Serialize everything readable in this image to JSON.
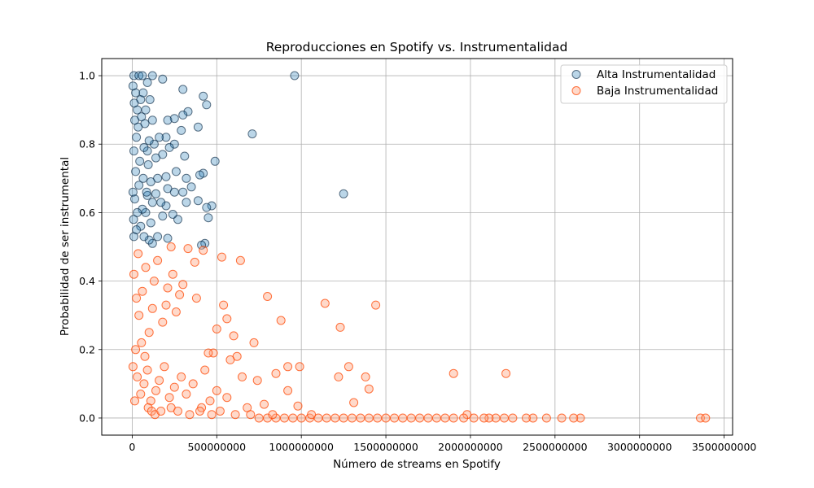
{
  "chart_data": {
    "type": "scatter",
    "title": "Reproducciones en Spotify vs. Instrumentalidad",
    "xlabel": "Número de streams en Spotify",
    "ylabel": "Probabilidad de ser instrumental",
    "xlim": [
      -180000000,
      3550000000
    ],
    "ylim": [
      -0.05,
      1.05
    ],
    "x_ticks": [
      0,
      500000000,
      1000000000,
      1500000000,
      2000000000,
      2500000000,
      3000000000,
      3500000000
    ],
    "x_tick_labels": [
      "0",
      "500000000",
      "1000000000",
      "1500000000",
      "2000000000",
      "2500000000",
      "3000000000",
      "3500000000"
    ],
    "y_ticks": [
      0.0,
      0.2,
      0.4,
      0.6,
      0.8,
      1.0
    ],
    "y_tick_labels": [
      "0.0",
      "0.2",
      "0.4",
      "0.6",
      "0.8",
      "1.0"
    ],
    "grid": true,
    "legend_position": "top-right",
    "series": [
      {
        "name": "Alta Instrumentalidad",
        "color": "#1f77b4",
        "edge_color": "#0b2a45",
        "alpha": 0.3,
        "points": [
          [
            960000000,
            1.0
          ],
          [
            300000000,
            0.96
          ],
          [
            120000000,
            1.0
          ],
          [
            180000000,
            0.99
          ],
          [
            10000000,
            1.0
          ],
          [
            40000000,
            1.0
          ],
          [
            60000000,
            1.0
          ],
          [
            90000000,
            0.98
          ],
          [
            420000000,
            0.94
          ],
          [
            440000000,
            0.915
          ],
          [
            330000000,
            0.895
          ],
          [
            300000000,
            0.885
          ],
          [
            250000000,
            0.875
          ],
          [
            210000000,
            0.87
          ],
          [
            390000000,
            0.85
          ],
          [
            710000000,
            0.83
          ],
          [
            290000000,
            0.84
          ],
          [
            200000000,
            0.82
          ],
          [
            160000000,
            0.82
          ],
          [
            130000000,
            0.8
          ],
          [
            250000000,
            0.8
          ],
          [
            220000000,
            0.79
          ],
          [
            100000000,
            0.81
          ],
          [
            490000000,
            0.75
          ],
          [
            310000000,
            0.765
          ],
          [
            180000000,
            0.77
          ],
          [
            140000000,
            0.76
          ],
          [
            90000000,
            0.78
          ],
          [
            70000000,
            0.79
          ],
          [
            420000000,
            0.715
          ],
          [
            400000000,
            0.71
          ],
          [
            320000000,
            0.7
          ],
          [
            260000000,
            0.72
          ],
          [
            200000000,
            0.705
          ],
          [
            150000000,
            0.7
          ],
          [
            110000000,
            0.69
          ],
          [
            1250000000,
            0.655
          ],
          [
            350000000,
            0.675
          ],
          [
            300000000,
            0.66
          ],
          [
            250000000,
            0.66
          ],
          [
            210000000,
            0.67
          ],
          [
            140000000,
            0.655
          ],
          [
            90000000,
            0.65
          ],
          [
            470000000,
            0.62
          ],
          [
            440000000,
            0.615
          ],
          [
            390000000,
            0.635
          ],
          [
            320000000,
            0.63
          ],
          [
            200000000,
            0.62
          ],
          [
            170000000,
            0.63
          ],
          [
            120000000,
            0.63
          ],
          [
            270000000,
            0.58
          ],
          [
            240000000,
            0.595
          ],
          [
            180000000,
            0.59
          ],
          [
            450000000,
            0.585
          ],
          [
            110000000,
            0.57
          ],
          [
            80000000,
            0.6
          ],
          [
            60000000,
            0.61
          ],
          [
            430000000,
            0.51
          ],
          [
            410000000,
            0.505
          ],
          [
            210000000,
            0.525
          ],
          [
            150000000,
            0.53
          ],
          [
            120000000,
            0.51
          ],
          [
            100000000,
            0.52
          ],
          [
            70000000,
            0.53
          ],
          [
            20000000,
            0.95
          ],
          [
            30000000,
            0.9
          ],
          [
            50000000,
            0.93
          ],
          [
            15000000,
            0.87
          ],
          [
            35000000,
            0.85
          ],
          [
            55000000,
            0.88
          ],
          [
            25000000,
            0.82
          ],
          [
            10000000,
            0.78
          ],
          [
            45000000,
            0.75
          ],
          [
            20000000,
            0.72
          ],
          [
            40000000,
            0.68
          ],
          [
            15000000,
            0.64
          ],
          [
            30000000,
            0.6
          ],
          [
            50000000,
            0.56
          ],
          [
            10000000,
            0.53
          ],
          [
            25000000,
            0.55
          ],
          [
            80000000,
            0.9
          ],
          [
            75000000,
            0.86
          ],
          [
            65000000,
            0.7
          ],
          [
            85000000,
            0.66
          ],
          [
            95000000,
            0.74
          ],
          [
            5000000,
            0.97
          ],
          [
            5000000,
            0.66
          ],
          [
            8000000,
            0.58
          ],
          [
            12000000,
            0.92
          ],
          [
            65000000,
            0.95
          ],
          [
            105000000,
            0.93
          ],
          [
            120000000,
            0.87
          ]
        ]
      },
      {
        "name": "Baja Instrumentalidad",
        "color": "#ffa07a",
        "edge_color": "#ff4500",
        "alpha": 0.4,
        "points": [
          [
            3360000000,
            0.0
          ],
          [
            3390000000,
            0.0
          ],
          [
            2650000000,
            0.0
          ],
          [
            2610000000,
            0.0
          ],
          [
            2540000000,
            0.0
          ],
          [
            2450000000,
            0.0
          ],
          [
            2370000000,
            0.0
          ],
          [
            2330000000,
            0.0
          ],
          [
            2250000000,
            0.0
          ],
          [
            2200000000,
            0.0
          ],
          [
            2150000000,
            0.0
          ],
          [
            2110000000,
            0.0
          ],
          [
            2080000000,
            0.0
          ],
          [
            2020000000,
            0.0
          ],
          [
            1980000000,
            0.01
          ],
          [
            1960000000,
            0.0
          ],
          [
            1900000000,
            0.0
          ],
          [
            1850000000,
            0.0
          ],
          [
            1800000000,
            0.0
          ],
          [
            1750000000,
            0.0
          ],
          [
            1700000000,
            0.0
          ],
          [
            1650000000,
            0.0
          ],
          [
            1600000000,
            0.0
          ],
          [
            1550000000,
            0.0
          ],
          [
            1500000000,
            0.0
          ],
          [
            1450000000,
            0.0
          ],
          [
            1400000000,
            0.0
          ],
          [
            1350000000,
            0.0
          ],
          [
            1300000000,
            0.0
          ],
          [
            1250000000,
            0.0
          ],
          [
            1200000000,
            0.0
          ],
          [
            1150000000,
            0.0
          ],
          [
            1100000000,
            0.0
          ],
          [
            1050000000,
            0.0
          ],
          [
            1000000000,
            0.0
          ],
          [
            950000000,
            0.0
          ],
          [
            900000000,
            0.0
          ],
          [
            850000000,
            0.0
          ],
          [
            800000000,
            0.0
          ],
          [
            750000000,
            0.0
          ],
          [
            2210000000,
            0.13
          ],
          [
            1900000000,
            0.13
          ],
          [
            1440000000,
            0.33
          ],
          [
            1140000000,
            0.335
          ],
          [
            1230000000,
            0.265
          ],
          [
            800000000,
            0.355
          ],
          [
            880000000,
            0.285
          ],
          [
            640000000,
            0.46
          ],
          [
            530000000,
            0.47
          ],
          [
            720000000,
            0.22
          ],
          [
            420000000,
            0.49
          ],
          [
            330000000,
            0.495
          ],
          [
            230000000,
            0.5
          ],
          [
            370000000,
            0.455
          ],
          [
            1380000000,
            0.12
          ],
          [
            1400000000,
            0.085
          ],
          [
            1280000000,
            0.15
          ],
          [
            1220000000,
            0.12
          ],
          [
            990000000,
            0.15
          ],
          [
            920000000,
            0.15
          ],
          [
            850000000,
            0.13
          ],
          [
            740000000,
            0.11
          ],
          [
            650000000,
            0.12
          ],
          [
            620000000,
            0.18
          ],
          [
            580000000,
            0.17
          ],
          [
            540000000,
            0.33
          ],
          [
            560000000,
            0.29
          ],
          [
            600000000,
            0.24
          ],
          [
            500000000,
            0.26
          ],
          [
            480000000,
            0.19
          ],
          [
            450000000,
            0.19
          ],
          [
            430000000,
            0.14
          ],
          [
            380000000,
            0.35
          ],
          [
            300000000,
            0.39
          ],
          [
            280000000,
            0.36
          ],
          [
            260000000,
            0.31
          ],
          [
            240000000,
            0.42
          ],
          [
            210000000,
            0.38
          ],
          [
            200000000,
            0.33
          ],
          [
            180000000,
            0.28
          ],
          [
            150000000,
            0.46
          ],
          [
            130000000,
            0.4
          ],
          [
            120000000,
            0.32
          ],
          [
            100000000,
            0.25
          ],
          [
            80000000,
            0.44
          ],
          [
            60000000,
            0.37
          ],
          [
            40000000,
            0.3
          ],
          [
            20000000,
            0.2
          ],
          [
            10000000,
            0.42
          ],
          [
            1310000000,
            0.045
          ],
          [
            920000000,
            0.08
          ],
          [
            980000000,
            0.035
          ],
          [
            780000000,
            0.04
          ],
          [
            680000000,
            0.03
          ],
          [
            560000000,
            0.06
          ],
          [
            500000000,
            0.08
          ],
          [
            460000000,
            0.05
          ],
          [
            410000000,
            0.03
          ],
          [
            360000000,
            0.1
          ],
          [
            320000000,
            0.07
          ],
          [
            290000000,
            0.12
          ],
          [
            250000000,
            0.09
          ],
          [
            220000000,
            0.06
          ],
          [
            190000000,
            0.15
          ],
          [
            160000000,
            0.11
          ],
          [
            140000000,
            0.08
          ],
          [
            110000000,
            0.05
          ],
          [
            90000000,
            0.14
          ],
          [
            70000000,
            0.1
          ],
          [
            50000000,
            0.07
          ],
          [
            30000000,
            0.12
          ],
          [
            15000000,
            0.05
          ],
          [
            5000000,
            0.15
          ],
          [
            25000000,
            0.35
          ],
          [
            35000000,
            0.48
          ],
          [
            55000000,
            0.22
          ],
          [
            75000000,
            0.18
          ],
          [
            95000000,
            0.03
          ],
          [
            115000000,
            0.02
          ],
          [
            135000000,
            0.01
          ],
          [
            170000000,
            0.02
          ],
          [
            230000000,
            0.03
          ],
          [
            270000000,
            0.02
          ],
          [
            340000000,
            0.01
          ],
          [
            400000000,
            0.02
          ],
          [
            470000000,
            0.01
          ],
          [
            520000000,
            0.02
          ],
          [
            610000000,
            0.01
          ],
          [
            700000000,
            0.01
          ],
          [
            830000000,
            0.01
          ],
          [
            1060000000,
            0.01
          ]
        ]
      }
    ]
  }
}
